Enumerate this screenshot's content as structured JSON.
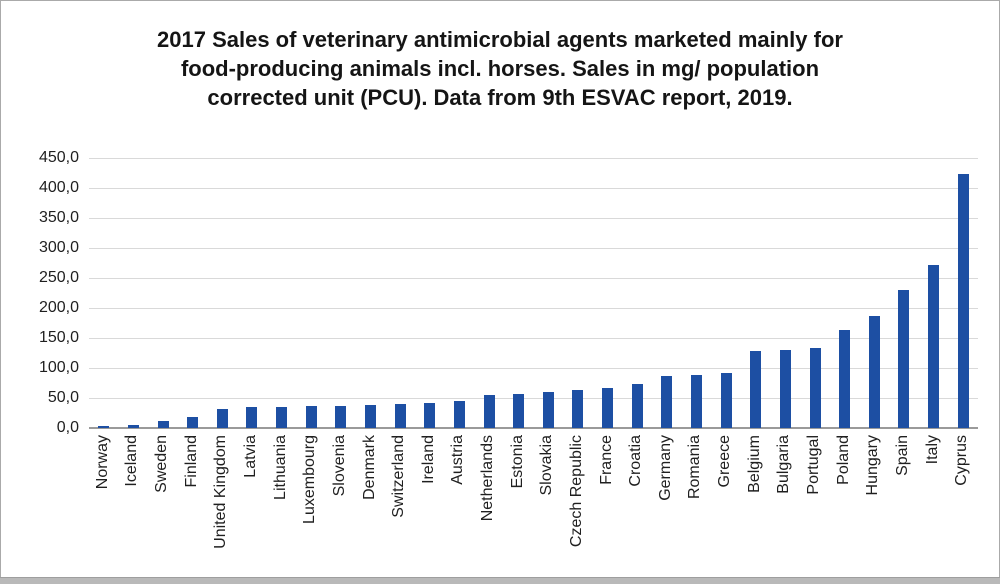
{
  "title": {
    "line1": "2017 Sales of veterinary antimicrobial agents marketed mainly for",
    "line2": "food-producing animals incl. horses. Sales in mg/ population",
    "line3": "corrected unit (PCU). Data from 9th ESVAC report, 2019."
  },
  "chart_data": {
    "type": "bar",
    "title": "2017 Sales of veterinary antimicrobial agents marketed mainly for food-producing animals incl. horses. Sales in mg/ population corrected unit (PCU). Data from 9th ESVAC report, 2019.",
    "xlabel": "",
    "ylabel": "",
    "unit": "mg/PCU",
    "ylim": [
      0,
      450
    ],
    "ytick_step": 50,
    "ytick_labels": [
      "0,0",
      "50,0",
      "100,0",
      "150,0",
      "200,0",
      "250,0",
      "300,0",
      "350,0",
      "400,0",
      "450,0"
    ],
    "grid": true,
    "legend_position": "none",
    "categories": [
      "Norway",
      "Iceland",
      "Sweden",
      "Finland",
      "United Kingdom",
      "Latvia",
      "Lithuania",
      "Luxembourg",
      "Slovenia",
      "Denmark",
      "Switzerland",
      "Ireland",
      "Austria",
      "Netherlands",
      "Estonia",
      "Slovakia",
      "Czech Republic",
      "France",
      "Croatia",
      "Germany",
      "Romania",
      "Greece",
      "Belgium",
      "Bulgaria",
      "Portugal",
      "Poland",
      "Hungary",
      "Spain",
      "Italy",
      "Cyprus"
    ],
    "values": [
      3.1,
      4.7,
      12.1,
      18.7,
      32.5,
      34.5,
      35.5,
      36.0,
      37.0,
      38.2,
      39.5,
      42.0,
      45.0,
      54.5,
      56.0,
      60.5,
      63.5,
      67.5,
      73.0,
      87.0,
      88.5,
      91.0,
      128.5,
      130.0,
      133.5,
      163.0,
      187.0,
      230.0,
      272.0,
      423.0
    ]
  },
  "colors": {
    "bar": "#1d4fa3",
    "gridline": "#d9d9d9",
    "axis_line": "#9a9a9a",
    "text": "#1f1f1f",
    "title_text": "#151515",
    "frame_border": "#aaaaaa",
    "bottom_strip": "#b9b9b9",
    "background": "#ffffff"
  }
}
